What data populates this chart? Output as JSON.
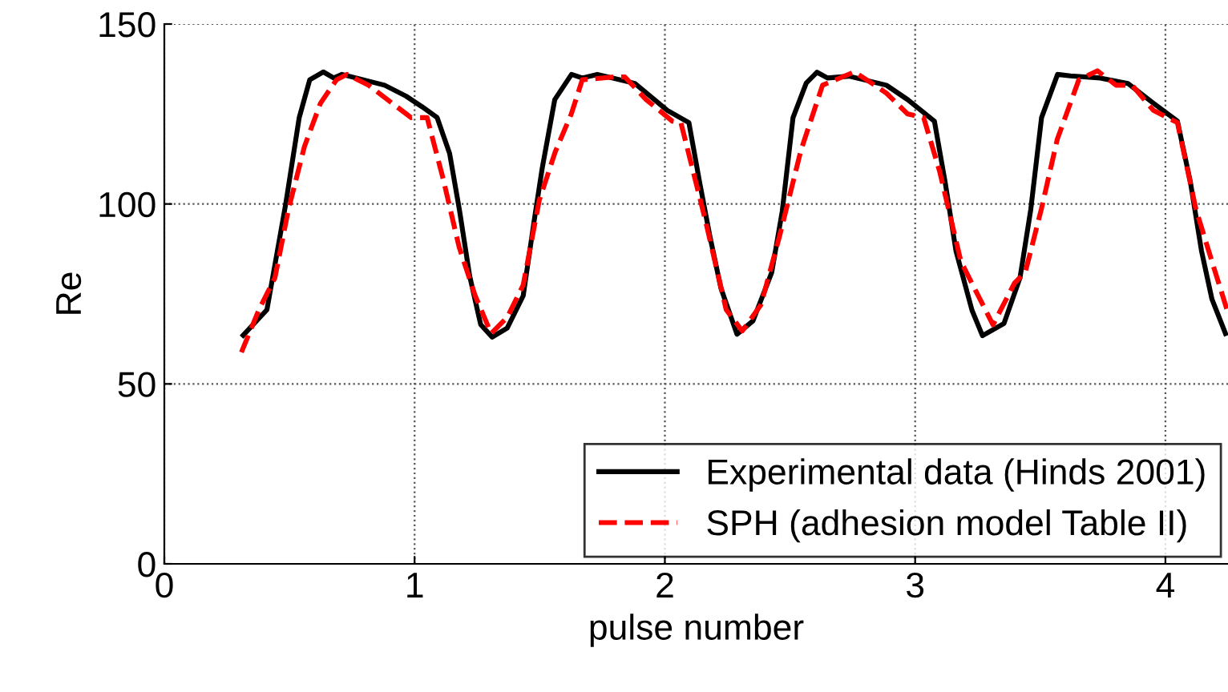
{
  "chart_data": {
    "type": "line",
    "xlabel": "pulse number",
    "ylabel": "Re",
    "xlim": [
      0,
      4.25
    ],
    "xticks": [
      0,
      1,
      2,
      3,
      4
    ],
    "ylim": [
      0,
      150
    ],
    "yticks": [
      0,
      50,
      100,
      150
    ],
    "grid": true,
    "legend": "bottom right",
    "marker": "none",
    "series": [
      {
        "name": "Experimental data (Hinds 2001)",
        "color": "#000000",
        "line_style": "solid",
        "x": [
          0.315,
          0.41,
          0.485,
          0.539,
          0.581,
          0.635,
          0.677,
          0.71,
          0.88,
          0.965,
          1.03,
          1.09,
          1.14,
          1.18,
          1.22,
          1.264,
          1.31,
          1.37,
          1.434,
          1.477,
          1.51,
          1.56,
          1.627,
          1.67,
          1.73,
          1.88,
          2.01,
          2.096,
          2.139,
          2.18,
          2.224,
          2.288,
          2.352,
          2.427,
          2.469,
          2.512,
          2.565,
          2.608,
          2.65,
          2.736,
          2.885,
          2.97,
          3.077,
          3.12,
          3.163,
          3.227,
          3.269,
          3.355,
          3.419,
          3.462,
          3.505,
          3.569,
          3.62,
          3.74,
          3.85,
          3.952,
          4.048,
          4.1,
          4.144,
          4.186,
          4.24
        ],
        "values": [
          63.5,
          70.6,
          100,
          124,
          134.5,
          136.7,
          135,
          136,
          133,
          130,
          127,
          124,
          114,
          98,
          80,
          66.5,
          63,
          65.5,
          74.5,
          95,
          110,
          129,
          136,
          135,
          136,
          133.5,
          126,
          122.6,
          106,
          91,
          76.6,
          63.8,
          67.5,
          81,
          98,
          124,
          133.6,
          136.6,
          135,
          135.5,
          133,
          129,
          123,
          106,
          87,
          70.5,
          63.4,
          66.8,
          79.5,
          98.5,
          124,
          136,
          135.6,
          135,
          133.5,
          128,
          123,
          106,
          87,
          73.5,
          64
        ]
      },
      {
        "name": "SPH (adhesion model Table II)",
        "color": "#ff0000",
        "line_style": "dashed",
        "x": [
          0.308,
          0.378,
          0.442,
          0.496,
          0.56,
          0.624,
          0.688,
          0.73,
          0.816,
          0.901,
          0.986,
          1.05,
          1.114,
          1.178,
          1.242,
          1.306,
          1.37,
          1.434,
          1.498,
          1.562,
          1.626,
          1.67,
          1.798,
          1.84,
          1.925,
          2.03,
          2.064,
          2.16,
          2.245,
          2.309,
          2.384,
          2.458,
          2.544,
          2.63,
          2.757,
          2.821,
          2.885,
          2.97,
          3.034,
          3.098,
          3.183,
          3.311,
          3.397,
          3.44,
          3.504,
          3.568,
          3.654,
          3.728,
          3.803,
          3.867,
          3.952,
          4.048,
          4.122,
          4.186,
          4.246
        ],
        "values": [
          58.8,
          70.6,
          79.5,
          98.5,
          116,
          128,
          134.5,
          136,
          133,
          128.5,
          124,
          124,
          107,
          88,
          74.5,
          64,
          68.5,
          77.5,
          101,
          114.5,
          125,
          134.5,
          135.3,
          135.3,
          129,
          123,
          122.6,
          96,
          70.6,
          64.7,
          72,
          91,
          115,
          133,
          136.7,
          133.8,
          130.8,
          125,
          124,
          109,
          84,
          66.4,
          78,
          81,
          98.5,
          118,
          134.5,
          137,
          133,
          133,
          126,
          122.6,
          98.5,
          84,
          70.6
        ]
      }
    ]
  }
}
